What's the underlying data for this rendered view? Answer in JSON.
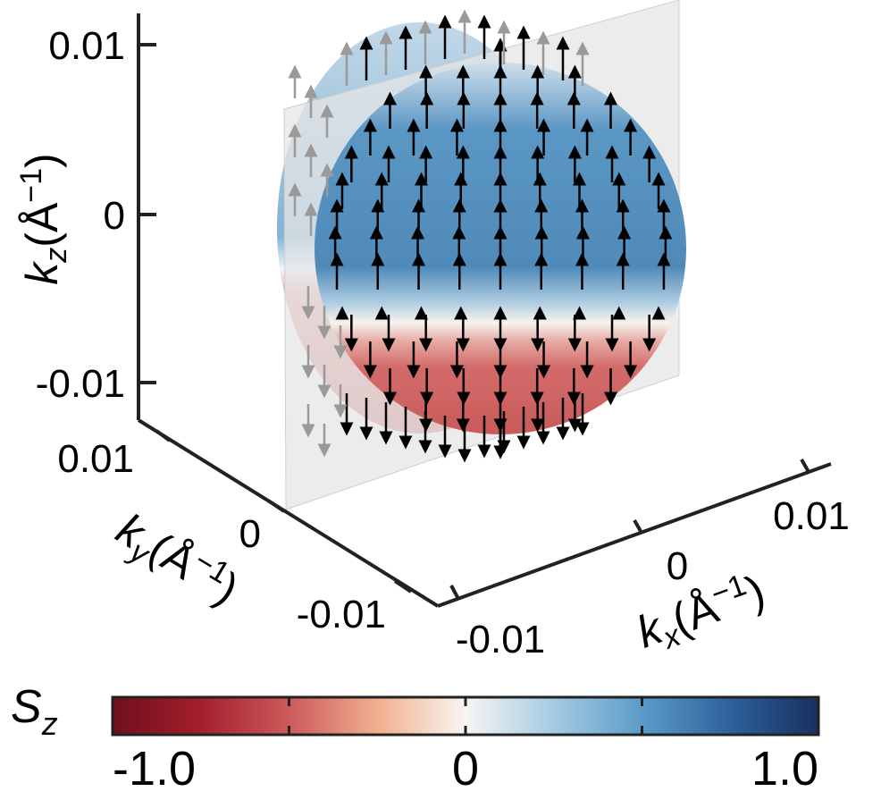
{
  "chart_data": {
    "type": "3d-surface-vector-field",
    "axes": {
      "z": {
        "label": "k",
        "subscript": "z",
        "unit": "(Å",
        "unit_exp": "−1",
        "unit_close": ")",
        "ticks": [
          {
            "value": 0.01,
            "label": "0.01"
          },
          {
            "value": 0,
            "label": "0"
          },
          {
            "value": -0.01,
            "label": "-0.01"
          }
        ],
        "range": [
          -0.01,
          0.01
        ]
      },
      "y": {
        "label": "k",
        "subscript": "y",
        "unit": "(Å",
        "unit_exp": "−1",
        "unit_close": ")",
        "ticks": [
          {
            "value": 0.01,
            "label": "0.01"
          },
          {
            "value": 0,
            "label": "0"
          },
          {
            "value": -0.01,
            "label": "-0.01"
          }
        ],
        "range": [
          -0.01,
          0.01
        ]
      },
      "x": {
        "label": "k",
        "subscript": "x",
        "unit": "(Å",
        "unit_exp": "−1",
        "unit_close": ")",
        "ticks": [
          {
            "value": -0.01,
            "label": "-0.01"
          },
          {
            "value": 0,
            "label": "0"
          },
          {
            "value": 0.01,
            "label": "0.01"
          }
        ],
        "range": [
          -0.01,
          0.01
        ]
      }
    },
    "surface": {
      "shape": "sphere",
      "color_quantity": "S_z"
    },
    "plane": {
      "position": "k_x = 0"
    },
    "arrows": {
      "description": "spin vectors",
      "upper_hemisphere": "up",
      "lower_hemisphere": "down"
    },
    "colorbar": {
      "label": "S",
      "subscript": "z",
      "min": -1.0,
      "max": 1.0,
      "tick_labels": [
        {
          "value": -1.0,
          "label": "-1.0"
        },
        {
          "value": 0,
          "label": "0"
        },
        {
          "value": 1.0,
          "label": "1.0"
        }
      ],
      "minor_ticks": [
        -1.0,
        -0.5,
        0,
        0.5,
        1.0
      ],
      "colors": {
        "negative": "#8a1a24",
        "mid_negative": "#d9868a",
        "neutral": "#f5f3ef",
        "mid_positive": "#6ba3cc",
        "positive": "#1e3d73"
      }
    }
  }
}
